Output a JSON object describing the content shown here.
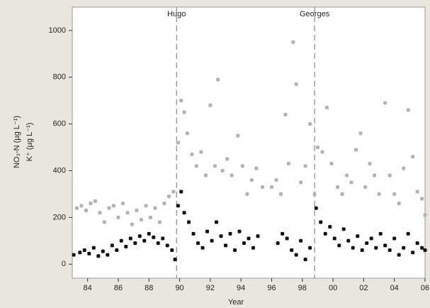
{
  "chart_data": {
    "type": "scatter",
    "xlabel": "Year",
    "ylabel": [
      "NO₃-N (µg L⁻¹)",
      "K⁺ (µg L⁻¹)"
    ],
    "xlim": [
      83,
      106
    ],
    "ylim": [
      -60,
      1100
    ],
    "xticks": [
      84,
      86,
      88,
      90,
      92,
      94,
      96,
      98,
      {
        "value": 100,
        "label": "00"
      },
      {
        "value": 102,
        "label": "02"
      },
      {
        "value": 104,
        "label": "04"
      },
      {
        "value": 106,
        "label": "06"
      }
    ],
    "yticks": [
      0,
      200,
      400,
      600,
      800,
      1000
    ],
    "annotations": [
      {
        "text": "Hugo",
        "x": 89.8
      },
      {
        "text": "Georges",
        "x": 98.8
      }
    ],
    "series": [
      {
        "color": "#b3b3b3",
        "x": [
          83.3,
          83.6,
          83.9,
          84.2,
          84.5,
          84.8,
          85.1,
          85.4,
          85.7,
          86.0,
          86.3,
          86.6,
          86.9,
          87.2,
          87.5,
          87.8,
          88.1,
          88.4,
          88.7,
          89.0,
          89.3,
          89.6,
          89.9,
          90.1,
          90.3,
          90.5,
          90.8,
          91.1,
          91.4,
          91.7,
          92.0,
          92.3,
          92.5,
          92.8,
          93.1,
          93.4,
          93.8,
          94.1,
          94.4,
          94.7,
          95.0,
          95.4,
          96.0,
          96.3,
          96.6,
          96.9,
          97.1,
          97.4,
          97.6,
          97.9,
          98.2,
          98.5,
          98.8,
          99.0,
          99.3,
          99.6,
          99.9,
          100.3,
          100.6,
          100.9,
          101.2,
          101.5,
          101.8,
          102.1,
          102.4,
          102.7,
          103.0,
          103.4,
          103.7,
          104.0,
          104.3,
          104.6,
          104.9,
          105.2,
          105.5,
          105.8,
          106.0
        ],
        "values": [
          240,
          250,
          230,
          260,
          270,
          220,
          180,
          240,
          250,
          200,
          260,
          220,
          170,
          230,
          190,
          250,
          200,
          240,
          180,
          260,
          290,
          310,
          520,
          700,
          650,
          560,
          470,
          420,
          480,
          380,
          680,
          420,
          790,
          400,
          450,
          380,
          550,
          420,
          300,
          360,
          410,
          330,
          330,
          360,
          300,
          640,
          430,
          950,
          770,
          350,
          420,
          600,
          300,
          500,
          480,
          670,
          430,
          330,
          300,
          380,
          350,
          490,
          560,
          330,
          430,
          380,
          300,
          690,
          380,
          300,
          260,
          410,
          660,
          460,
          310,
          280,
          210
        ]
      },
      {
        "color": "#111111",
        "x": [
          83.1,
          83.5,
          83.8,
          84.1,
          84.4,
          84.7,
          85.0,
          85.3,
          85.6,
          85.9,
          86.2,
          86.5,
          86.8,
          87.1,
          87.4,
          87.7,
          88.0,
          88.3,
          88.6,
          88.9,
          89.2,
          89.5,
          89.7,
          89.9,
          90.1,
          90.3,
          90.6,
          90.9,
          91.2,
          91.5,
          91.8,
          92.1,
          92.4,
          92.7,
          93.0,
          93.3,
          93.6,
          93.9,
          94.2,
          94.5,
          94.8,
          95.1,
          96.4,
          96.7,
          97.0,
          97.3,
          97.6,
          97.9,
          98.2,
          98.5,
          98.9,
          99.2,
          99.5,
          99.8,
          100.1,
          100.4,
          100.7,
          101.0,
          101.3,
          101.6,
          101.9,
          102.2,
          102.5,
          102.8,
          103.1,
          103.4,
          103.7,
          104.0,
          104.3,
          104.6,
          104.9,
          105.2,
          105.5,
          105.8,
          106.0
        ],
        "values": [
          40,
          50,
          60,
          45,
          70,
          35,
          55,
          40,
          80,
          60,
          100,
          75,
          110,
          90,
          120,
          100,
          130,
          115,
          90,
          110,
          80,
          60,
          20,
          250,
          310,
          220,
          180,
          130,
          90,
          70,
          140,
          100,
          180,
          120,
          80,
          130,
          60,
          140,
          90,
          110,
          70,
          120,
          90,
          130,
          110,
          60,
          40,
          100,
          20,
          70,
          240,
          180,
          130,
          160,
          110,
          80,
          150,
          100,
          70,
          120,
          60,
          90,
          110,
          70,
          130,
          80,
          60,
          110,
          40,
          70,
          130,
          50,
          90,
          70,
          60
        ]
      }
    ]
  }
}
